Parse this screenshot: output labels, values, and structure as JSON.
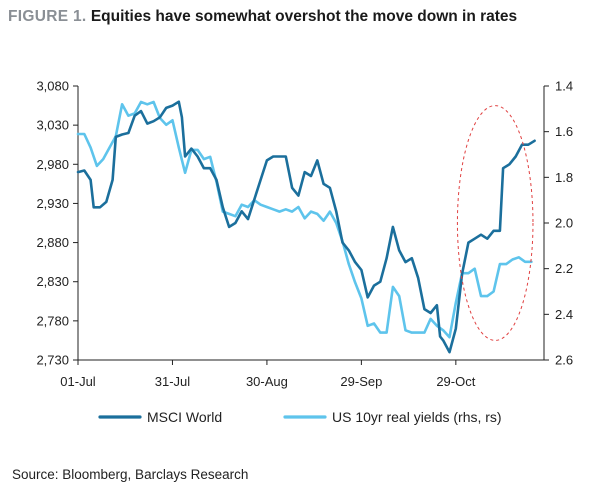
{
  "header": {
    "figure_label": "FIGURE 1.",
    "title": "Equities have somewhat overshot the move down in rates"
  },
  "footer": {
    "source": "Source: Bloomberg, Barclays Research"
  },
  "chart_data": {
    "type": "line",
    "x_tick_labels": [
      "01-Jul",
      "31-Jul",
      "30-Aug",
      "29-Sep",
      "29-Oct"
    ],
    "x_tick_days": [
      0,
      30,
      60,
      90,
      120
    ],
    "x_range_days": [
      0,
      148
    ],
    "y_left": {
      "range": [
        2730,
        3080
      ],
      "ticks": [
        2730,
        2780,
        2830,
        2880,
        2930,
        2980,
        3030,
        3080
      ],
      "tick_labels": [
        "2,730",
        "2,780",
        "2,830",
        "2,880",
        "2,930",
        "2,980",
        "3,030",
        "3,080"
      ]
    },
    "y_right": {
      "range": [
        1.4,
        2.6
      ],
      "inverted": true,
      "ticks": [
        1.4,
        1.6,
        1.8,
        2.0,
        2.2,
        2.4,
        2.6
      ],
      "tick_labels": [
        "1.4",
        "1.6",
        "1.8",
        "2.0",
        "2.2",
        "2.4",
        "2.6"
      ]
    },
    "legend_position": "bottom",
    "grid": false,
    "annotation": {
      "shape": "dashed-ellipse",
      "color": "#e04040",
      "center_day": 132.5,
      "center_value_left": 2905,
      "radius_days": 12,
      "radius_value_left": 150
    },
    "series": [
      {
        "name": "MSCI World",
        "axis": "left",
        "color": "#1b6f9c",
        "points": [
          [
            0,
            2970
          ],
          [
            2,
            2972
          ],
          [
            4,
            2960
          ],
          [
            5,
            2925
          ],
          [
            7,
            2925
          ],
          [
            9,
            2932
          ],
          [
            11,
            2960
          ],
          [
            12,
            3015
          ],
          [
            14,
            3018
          ],
          [
            16,
            3020
          ],
          [
            18,
            3042
          ],
          [
            20,
            3048
          ],
          [
            22,
            3032
          ],
          [
            24,
            3035
          ],
          [
            26,
            3040
          ],
          [
            28,
            3052
          ],
          [
            30,
            3055
          ],
          [
            32,
            3060
          ],
          [
            33,
            3040
          ],
          [
            34,
            2990
          ],
          [
            36,
            3000
          ],
          [
            38,
            2990
          ],
          [
            40,
            2975
          ],
          [
            42,
            2975
          ],
          [
            44,
            2960
          ],
          [
            46,
            2925
          ],
          [
            48,
            2900
          ],
          [
            50,
            2905
          ],
          [
            52,
            2920
          ],
          [
            54,
            2910
          ],
          [
            56,
            2935
          ],
          [
            58,
            2960
          ],
          [
            60,
            2985
          ],
          [
            62,
            2990
          ],
          [
            64,
            2990
          ],
          [
            66,
            2990
          ],
          [
            68,
            2950
          ],
          [
            70,
            2940
          ],
          [
            72,
            2970
          ],
          [
            74,
            2965
          ],
          [
            76,
            2985
          ],
          [
            78,
            2955
          ],
          [
            80,
            2950
          ],
          [
            82,
            2920
          ],
          [
            84,
            2880
          ],
          [
            86,
            2870
          ],
          [
            88,
            2855
          ],
          [
            90,
            2845
          ],
          [
            92,
            2810
          ],
          [
            94,
            2825
          ],
          [
            96,
            2830
          ],
          [
            98,
            2860
          ],
          [
            100,
            2900
          ],
          [
            102,
            2870
          ],
          [
            104,
            2855
          ],
          [
            106,
            2860
          ],
          [
            108,
            2835
          ],
          [
            110,
            2795
          ],
          [
            112,
            2790
          ],
          [
            114,
            2800
          ],
          [
            115,
            2760
          ],
          [
            116,
            2755
          ],
          [
            118,
            2740
          ],
          [
            120,
            2770
          ],
          [
            122,
            2840
          ],
          [
            124,
            2880
          ],
          [
            126,
            2885
          ],
          [
            128,
            2890
          ],
          [
            130,
            2885
          ],
          [
            132,
            2895
          ],
          [
            134,
            2895
          ],
          [
            135,
            2975
          ],
          [
            137,
            2980
          ],
          [
            139,
            2990
          ],
          [
            141,
            3005
          ],
          [
            143,
            3005
          ],
          [
            145,
            3010
          ]
        ]
      },
      {
        "name": "US 10yr real yields (rhs, rs)",
        "axis": "right",
        "color": "#5ec4ec",
        "points": [
          [
            0,
            1.61
          ],
          [
            2,
            1.61
          ],
          [
            4,
            1.67
          ],
          [
            6,
            1.75
          ],
          [
            8,
            1.72
          ],
          [
            10,
            1.67
          ],
          [
            12,
            1.62
          ],
          [
            14,
            1.48
          ],
          [
            16,
            1.53
          ],
          [
            18,
            1.52
          ],
          [
            20,
            1.47
          ],
          [
            22,
            1.48
          ],
          [
            24,
            1.47
          ],
          [
            26,
            1.54
          ],
          [
            28,
            1.57
          ],
          [
            30,
            1.55
          ],
          [
            32,
            1.67
          ],
          [
            34,
            1.78
          ],
          [
            36,
            1.68
          ],
          [
            38,
            1.68
          ],
          [
            40,
            1.72
          ],
          [
            42,
            1.71
          ],
          [
            44,
            1.82
          ],
          [
            46,
            1.95
          ],
          [
            48,
            1.96
          ],
          [
            50,
            1.97
          ],
          [
            52,
            1.92
          ],
          [
            54,
            1.93
          ],
          [
            56,
            1.9
          ],
          [
            58,
            1.92
          ],
          [
            60,
            1.93
          ],
          [
            62,
            1.94
          ],
          [
            64,
            1.95
          ],
          [
            66,
            1.94
          ],
          [
            68,
            1.95
          ],
          [
            70,
            1.93
          ],
          [
            72,
            1.98
          ],
          [
            74,
            1.95
          ],
          [
            76,
            1.96
          ],
          [
            78,
            1.99
          ],
          [
            80,
            1.95
          ],
          [
            82,
            2.0
          ],
          [
            84,
            2.08
          ],
          [
            86,
            2.18
          ],
          [
            88,
            2.26
          ],
          [
            90,
            2.33
          ],
          [
            92,
            2.45
          ],
          [
            94,
            2.44
          ],
          [
            96,
            2.48
          ],
          [
            98,
            2.48
          ],
          [
            100,
            2.28
          ],
          [
            102,
            2.32
          ],
          [
            104,
            2.47
          ],
          [
            106,
            2.48
          ],
          [
            108,
            2.48
          ],
          [
            110,
            2.48
          ],
          [
            112,
            2.42
          ],
          [
            114,
            2.45
          ],
          [
            116,
            2.47
          ],
          [
            118,
            2.5
          ],
          [
            120,
            2.35
          ],
          [
            122,
            2.22
          ],
          [
            124,
            2.22
          ],
          [
            126,
            2.2
          ],
          [
            128,
            2.32
          ],
          [
            130,
            2.32
          ],
          [
            132,
            2.3
          ],
          [
            134,
            2.18
          ],
          [
            136,
            2.18
          ],
          [
            138,
            2.16
          ],
          [
            140,
            2.15
          ],
          [
            142,
            2.17
          ],
          [
            144,
            2.17
          ]
        ]
      }
    ]
  }
}
